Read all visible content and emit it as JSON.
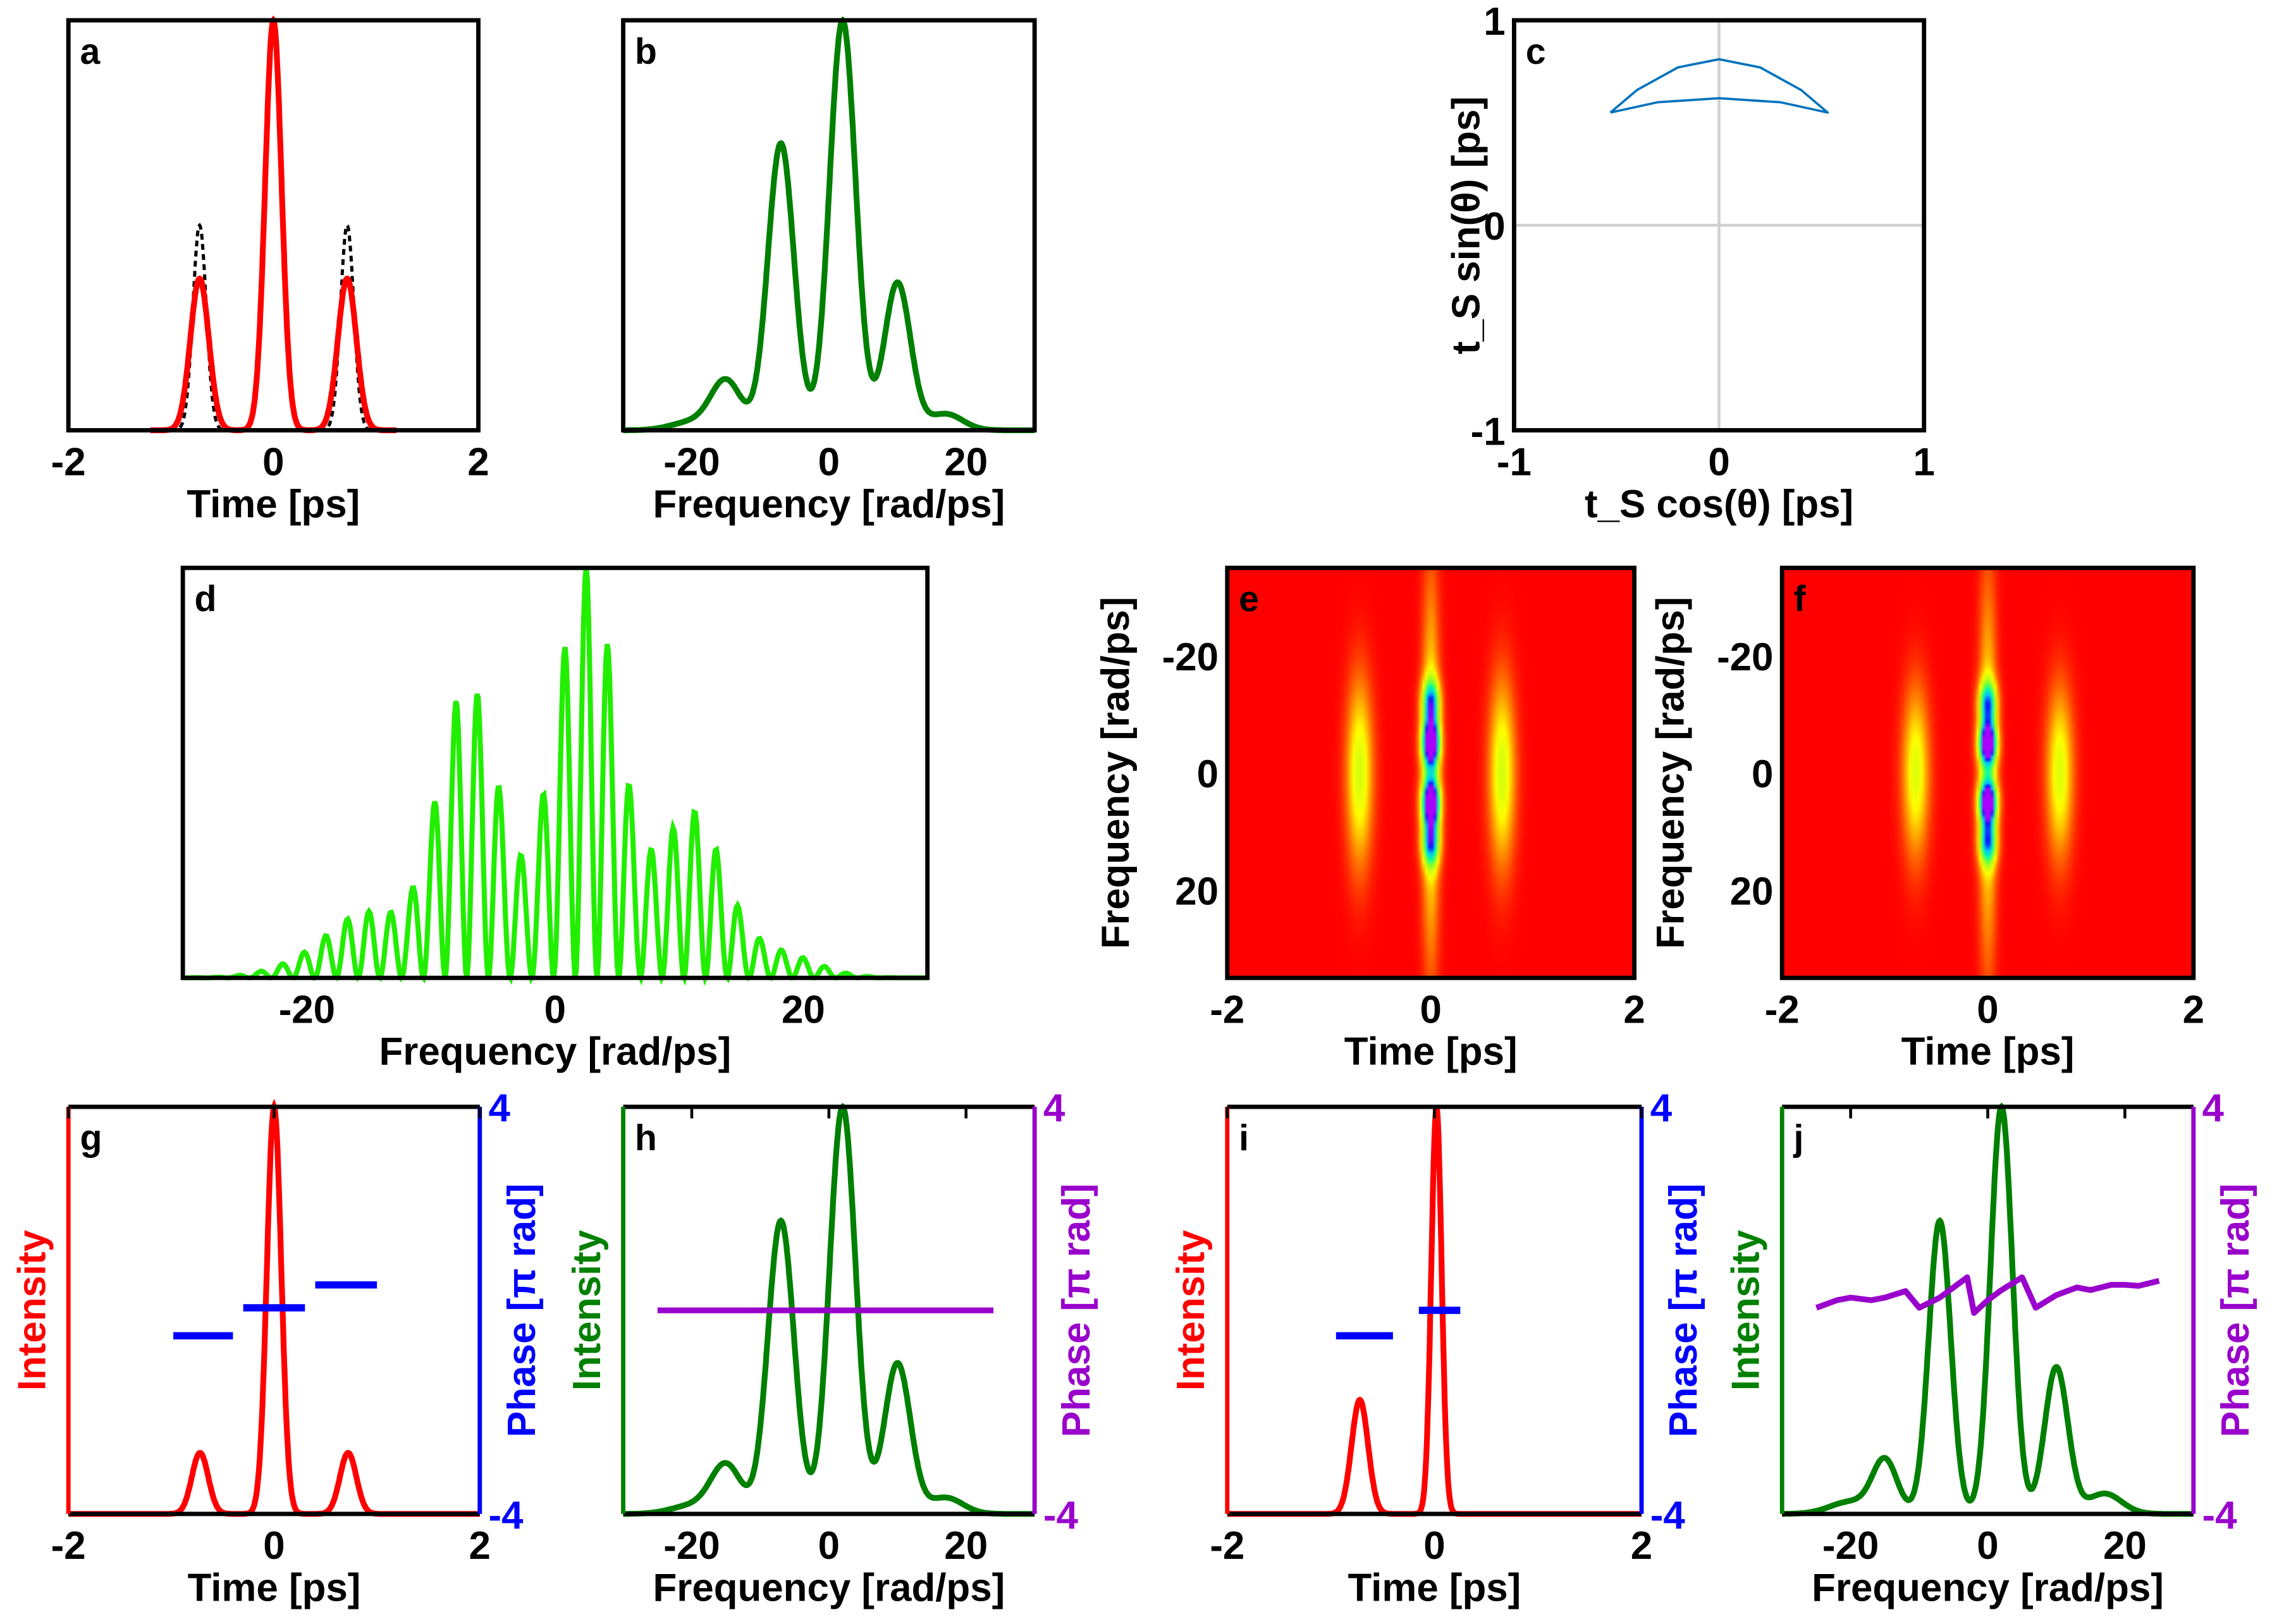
{
  "chart_data": [
    {
      "id": "a",
      "label": "a",
      "type": "line",
      "xlim": [
        -2,
        2
      ],
      "ylim": [
        0,
        1
      ],
      "xticks": [
        "-2",
        "0",
        "2"
      ],
      "xtickvals": [
        -2,
        0,
        2
      ],
      "yticks": [],
      "ytickvals": [],
      "xlabel": "Time [ps]",
      "ylabel": "",
      "series": [
        {
          "name": "reference",
          "color": "#000000",
          "dash": true,
          "range": [
            -1.2,
            1.2
          ],
          "peaks": [
            [
              -0.72,
              0.5,
              0.065
            ],
            [
              0,
              1,
              0.08
            ],
            [
              0.72,
              0.5,
              0.065
            ]
          ]
        },
        {
          "name": "retrieved",
          "color": "#ff0000",
          "range": [
            -1.2,
            1.2
          ],
          "peaks": [
            [
              -0.72,
              0.37,
              0.09
            ],
            [
              0,
              1,
              0.08
            ],
            [
              0.72,
              0.37,
              0.09
            ]
          ]
        }
      ]
    },
    {
      "id": "b",
      "label": "b",
      "type": "line",
      "xlim": [
        -30,
        30
      ],
      "ylim": [
        0,
        1
      ],
      "xticks": [
        "-20",
        "0",
        "20"
      ],
      "xtickvals": [
        -20,
        0,
        20
      ],
      "yticks": [],
      "ytickvals": [],
      "xlabel": "Frequency [rad/ps]",
      "ylabel": "",
      "series": [
        {
          "name": "spectrum",
          "color": "#008000",
          "range": [
            -30,
            30
          ],
          "peaks": [
            [
              -15,
              0.12,
              2.2
            ],
            [
              -20,
              0.02,
              3
            ],
            [
              -7,
              0.7,
              1.9
            ],
            [
              2,
              1,
              1.9
            ],
            [
              10,
              0.36,
              1.9
            ],
            [
              17,
              0.04,
              2.5
            ]
          ]
        }
      ]
    },
    {
      "id": "c",
      "label": "c",
      "type": "line",
      "xlim": [
        -1,
        1
      ],
      "ylim": [
        -1,
        1
      ],
      "xticks": [
        "-1",
        "0",
        "1"
      ],
      "xtickvals": [
        -1,
        0,
        1
      ],
      "yticks": [
        "-1",
        "0",
        "1"
      ],
      "ytickvals": [
        -1,
        0,
        1
      ],
      "xlabel": "t_S cos(θ) [ps]",
      "ylabel": "t_S sin(θ) [ps]",
      "grid": true,
      "series": [
        {
          "name": "trajectory",
          "color": "#0072bd",
          "thin": true,
          "points": [
            [
              -0.53,
              0.55
            ],
            [
              -0.4,
              0.66
            ],
            [
              -0.2,
              0.77
            ],
            [
              0,
              0.81
            ],
            [
              0.2,
              0.77
            ],
            [
              0.4,
              0.66
            ],
            [
              0.53,
              0.55
            ],
            [
              0.3,
              0.6
            ],
            [
              0,
              0.62
            ],
            [
              -0.3,
              0.6
            ],
            [
              -0.53,
              0.55
            ]
          ]
        }
      ]
    },
    {
      "id": "d",
      "label": "d",
      "type": "line",
      "xlim": [
        -30,
        30
      ],
      "ylim": [
        0,
        1
      ],
      "xticks": [
        "-20",
        "0",
        "20"
      ],
      "xtickvals": [
        -20,
        0,
        20
      ],
      "yticks": [],
      "ytickvals": [],
      "xlabel": "Frequency [rad/ps]",
      "ylabel": "",
      "series": [
        {
          "name": "interferogram",
          "color": "#22ee00",
          "range": [
            -30,
            30
          ],
          "fringe_period": 1.75,
          "fringe_center": 2.5,
          "peaks": [
            [
              -15,
              0.15,
              3
            ],
            [
              -7,
              0.72,
              2.5
            ],
            [
              2.5,
              1,
              2.6
            ],
            [
              11,
              0.4,
              2.6
            ],
            [
              18,
              0.06,
              3
            ],
            [
              -20,
              0.03,
              3
            ]
          ]
        }
      ]
    },
    {
      "id": "e",
      "label": "e",
      "type": "heatmap",
      "xlim": [
        -2,
        2
      ],
      "ylim": [
        -35,
        35
      ],
      "xticks": [
        "-2",
        "0",
        "2"
      ],
      "xtickvals": [
        -2,
        0,
        2
      ],
      "yticks": [
        "-20",
        "0",
        "20"
      ],
      "ytickvals": [
        -20,
        0,
        20
      ],
      "xlabel": "Time [ps]",
      "ylabel": "Frequency [rad/ps]",
      "blobs": [
        [
          -0.7,
          0,
          0.09,
          11,
          0.38
        ],
        [
          0.7,
          0,
          0.09,
          11,
          0.38
        ],
        [
          0,
          0,
          0.06,
          22,
          0.35
        ],
        [
          0,
          -12,
          0.06,
          2.8,
          0.62
        ],
        [
          0,
          -5,
          0.06,
          2.8,
          1
        ],
        [
          0,
          5,
          0.06,
          2.8,
          1
        ],
        [
          0,
          12,
          0.06,
          2.8,
          0.62
        ]
      ]
    },
    {
      "id": "f",
      "label": "f",
      "type": "heatmap",
      "xlim": [
        -2,
        2
      ],
      "ylim": [
        -35,
        35
      ],
      "xticks": [
        "-2",
        "0",
        "2"
      ],
      "xtickvals": [
        -2,
        0,
        2
      ],
      "yticks": [
        "-20",
        "0",
        "20"
      ],
      "ytickvals": [
        -20,
        0,
        20
      ],
      "xlabel": "Time [ps]",
      "ylabel": "Frequency [rad/ps]",
      "blobs": [
        [
          -0.7,
          0,
          0.09,
          10,
          0.36
        ],
        [
          0.7,
          0,
          0.09,
          10,
          0.36
        ],
        [
          0,
          0,
          0.06,
          22,
          0.33
        ],
        [
          0,
          -12,
          0.06,
          2.6,
          0.6
        ],
        [
          0,
          -5,
          0.06,
          2.6,
          1
        ],
        [
          0,
          5,
          0.06,
          2.6,
          1
        ],
        [
          0,
          12,
          0.06,
          2.6,
          0.6
        ]
      ]
    },
    {
      "id": "g",
      "label": "g",
      "type": "line",
      "dual": true,
      "xlim": [
        -2,
        2
      ],
      "ylim": [
        0,
        1
      ],
      "y2lim": [
        -4,
        4
      ],
      "xticks": [
        "-2",
        "0",
        "2"
      ],
      "xtickvals": [
        -2,
        0,
        2
      ],
      "y2ticks": [
        "4",
        "-4"
      ],
      "y2tickvals": [
        4,
        -4
      ],
      "xlabel": "Time [ps]",
      "ylabel": "Intensity",
      "y2label": "Phase [π rad]",
      "lcolor": "#ff0000",
      "rcolor": "#0000ff",
      "series": [
        {
          "name": "intensity",
          "color": "#ff0000",
          "range": [
            -2,
            2
          ],
          "peaks": [
            [
              -0.72,
              0.15,
              0.08
            ],
            [
              0,
              1,
              0.07
            ],
            [
              0.72,
              0.15,
              0.08
            ]
          ]
        },
        {
          "name": "phase",
          "color": "#0000ff",
          "axis": 2,
          "segments": [
            [
              -0.98,
              -0.4,
              -0.5
            ],
            [
              -0.3,
              0.3,
              0.05
            ],
            [
              0.4,
              1.0,
              0.5
            ]
          ]
        }
      ]
    },
    {
      "id": "h",
      "label": "h",
      "type": "line",
      "dual": true,
      "xlim": [
        -30,
        30
      ],
      "ylim": [
        0,
        1
      ],
      "y2lim": [
        -4,
        4
      ],
      "xticks": [
        "-20",
        "0",
        "20"
      ],
      "xtickvals": [
        -20,
        0,
        20
      ],
      "y2ticks": [
        "4",
        "-4"
      ],
      "y2tickvals": [
        4,
        -4
      ],
      "xlabel": "Frequency [rad/ps]",
      "ylabel": "Intensity",
      "y2label": "Phase [π rad]",
      "lcolor": "#008000",
      "rcolor": "#9900cc",
      "series": [
        {
          "name": "intensity",
          "color": "#008000",
          "range": [
            -30,
            30
          ],
          "peaks": [
            [
              -15,
              0.12,
              2.2
            ],
            [
              -20,
              0.02,
              3
            ],
            [
              -7,
              0.72,
              1.9
            ],
            [
              2,
              1,
              1.9
            ],
            [
              10,
              0.37,
              1.9
            ],
            [
              17,
              0.04,
              2.5
            ]
          ]
        },
        {
          "name": "phase",
          "color": "#9900cc",
          "axis": 2,
          "points": [
            [
              -25,
              0
            ],
            [
              -15,
              0
            ],
            [
              -5,
              0
            ],
            [
              5,
              0
            ],
            [
              15,
              0
            ],
            [
              24,
              0
            ]
          ]
        }
      ]
    },
    {
      "id": "i",
      "label": "i",
      "type": "line",
      "dual": true,
      "xlim": [
        -2,
        2
      ],
      "ylim": [
        0,
        1
      ],
      "y2lim": [
        -4,
        4
      ],
      "xticks": [
        "-2",
        "0",
        "2"
      ],
      "xtickvals": [
        -2,
        0,
        2
      ],
      "y2ticks": [
        "4",
        "-4"
      ],
      "y2tickvals": [
        4,
        -4
      ],
      "xlabel": "Time [ps]",
      "ylabel": "Intensity",
      "y2label": "Phase [π rad]",
      "lcolor": "#ff0000",
      "rcolor": "#0000ff",
      "series": [
        {
          "name": "intensity",
          "color": "#ff0000",
          "range": [
            -2,
            2
          ],
          "peaks": [
            [
              -0.72,
              0.28,
              0.08
            ],
            [
              0.02,
              1,
              0.05
            ]
          ]
        },
        {
          "name": "phase",
          "color": "#0000ff",
          "axis": 2,
          "segments": [
            [
              -0.95,
              -0.4,
              -0.5
            ],
            [
              -0.15,
              0.25,
              0.0
            ]
          ]
        }
      ]
    },
    {
      "id": "j",
      "label": "j",
      "type": "line",
      "dual": true,
      "xlim": [
        -30,
        30
      ],
      "ylim": [
        0,
        1
      ],
      "y2lim": [
        -4,
        4
      ],
      "xticks": [
        "-20",
        "0",
        "20"
      ],
      "xtickvals": [
        -20,
        0,
        20
      ],
      "y2ticks": [
        "4",
        "-4"
      ],
      "y2tickvals": [
        4,
        -4
      ],
      "xlabel": "Frequency [rad/ps]",
      "ylabel": "Intensity",
      "y2label": "Phase [π rad]",
      "lcolor": "#008000",
      "rcolor": "#9900cc",
      "series": [
        {
          "name": "intensity",
          "color": "#008000",
          "range": [
            -30,
            30
          ],
          "peaks": [
            [
              -15,
              0.13,
              1.8
            ],
            [
              -20,
              0.03,
              3
            ],
            [
              -7,
              0.72,
              1.6
            ],
            [
              2,
              1,
              1.6
            ],
            [
              10,
              0.36,
              1.7
            ],
            [
              17,
              0.05,
              2.5
            ]
          ]
        },
        {
          "name": "phase",
          "color": "#9900cc",
          "axis": 2,
          "points": [
            [
              -25,
              0.05
            ],
            [
              -22,
              0.2
            ],
            [
              -20,
              0.25
            ],
            [
              -17,
              0.2
            ],
            [
              -15,
              0.25
            ],
            [
              -12,
              0.38
            ],
            [
              -10,
              0.05
            ],
            [
              -7,
              0.25
            ],
            [
              -3,
              0.65
            ],
            [
              -2,
              -0.05
            ],
            [
              0,
              0.2
            ],
            [
              2,
              0.4
            ],
            [
              5,
              0.65
            ],
            [
              7,
              0.05
            ],
            [
              10,
              0.3
            ],
            [
              13,
              0.45
            ],
            [
              15,
              0.4
            ],
            [
              18,
              0.5
            ],
            [
              20,
              0.5
            ],
            [
              22,
              0.48
            ],
            [
              25,
              0.58
            ]
          ]
        }
      ]
    }
  ]
}
